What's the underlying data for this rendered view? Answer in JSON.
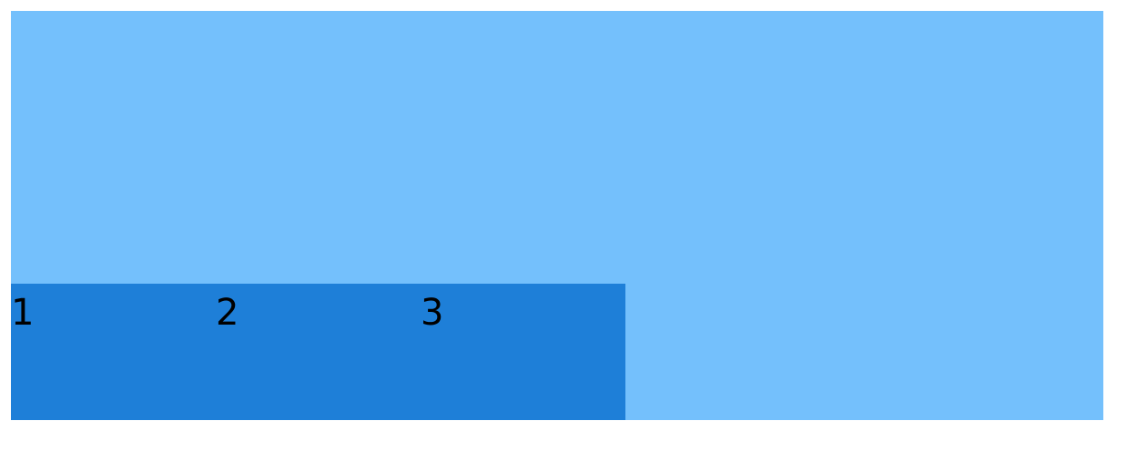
{
  "colors": {
    "outer_background": "#74c0fc",
    "inner_background": "#1e7fd8",
    "text": "#000000"
  },
  "items": [
    {
      "label": "1"
    },
    {
      "label": "2"
    },
    {
      "label": "3"
    }
  ]
}
